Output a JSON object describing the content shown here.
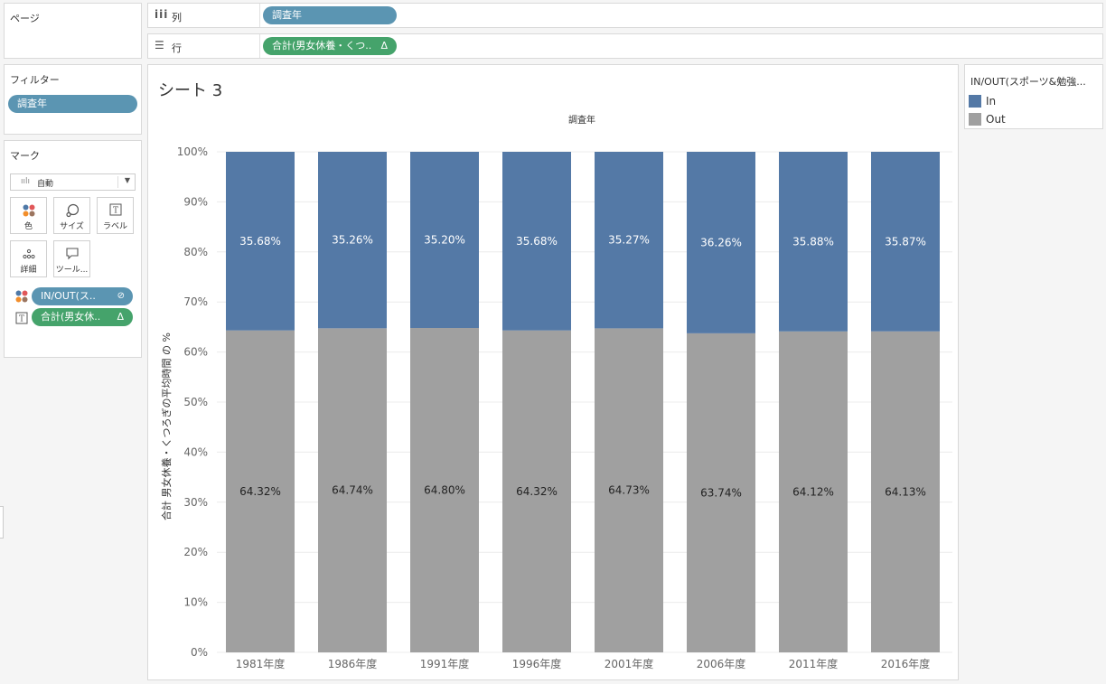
{
  "pages": {
    "title": "ページ"
  },
  "columns_shelf": {
    "label": "列",
    "pill": "調査年"
  },
  "rows_shelf": {
    "label": "行",
    "pill": "合計(男女休養・くつ..",
    "pill_icon": "Δ"
  },
  "filters": {
    "title": "フィルター",
    "pill": "調査年"
  },
  "marks": {
    "title": "マーク",
    "dropdown_value": "自動",
    "buttons": {
      "color": "色",
      "size": "サイズ",
      "label": "ラベル",
      "detail": "詳細",
      "tooltip": "ツール..."
    },
    "field1": "IN/OUT(ス..",
    "field2": "合計(男女休..",
    "field2_icon": "Δ"
  },
  "sheet": {
    "title": "シート 3"
  },
  "legend": {
    "title": "IN/OUT(スポーツ&勉強...",
    "items": [
      {
        "label": "In",
        "color": "#5479a6"
      },
      {
        "label": "Out",
        "color": "#a0a0a0"
      }
    ]
  },
  "chart_data": {
    "type": "bar",
    "stacked": true,
    "title": "調査年",
    "ylabel": "合計 男女休養・くつろぎの平均時間 の %",
    "categories": [
      "1981年度",
      "1986年度",
      "1991年度",
      "1996年度",
      "2001年度",
      "2006年度",
      "2011年度",
      "2016年度"
    ],
    "series": [
      {
        "name": "Out",
        "color": "#a0a0a0",
        "values": [
          64.32,
          64.74,
          64.8,
          64.32,
          64.73,
          63.74,
          64.12,
          64.13
        ],
        "labels": [
          "64.32%",
          "64.74%",
          "64.80%",
          "64.32%",
          "64.73%",
          "63.74%",
          "64.12%",
          "64.13%"
        ]
      },
      {
        "name": "In",
        "color": "#5479a6",
        "values": [
          35.68,
          35.26,
          35.2,
          35.68,
          35.27,
          36.26,
          35.88,
          35.87
        ],
        "labels": [
          "35.68%",
          "35.26%",
          "35.20%",
          "35.68%",
          "35.27%",
          "36.26%",
          "35.88%",
          "35.87%"
        ]
      }
    ],
    "yticks": [
      "0%",
      "10%",
      "20%",
      "30%",
      "40%",
      "50%",
      "60%",
      "70%",
      "80%",
      "90%",
      "100%"
    ],
    "ylim": [
      0,
      100
    ],
    "grid": true
  }
}
